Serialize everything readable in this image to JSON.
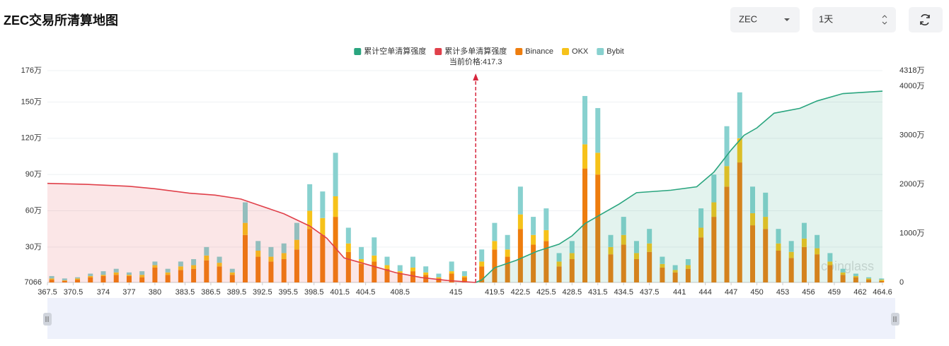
{
  "header": {
    "title": "ZEC交易所清算地图",
    "symbol": "ZEC",
    "interval": "1天"
  },
  "chart_data": {
    "type": "bar",
    "annotation": {
      "label": "当前价格:417.3",
      "value": 417.3
    },
    "watermark": "coinglass",
    "x": [
      368,
      369.5,
      371,
      372.5,
      374,
      375.5,
      377,
      378.5,
      380,
      381.5,
      383,
      384.5,
      386,
      387.5,
      389,
      390.5,
      392,
      393.5,
      395,
      396.5,
      398,
      399.5,
      401,
      402.5,
      404,
      405.5,
      407,
      408.5,
      410,
      411.5,
      413,
      414.5,
      416,
      418,
      419.5,
      421,
      422.5,
      424,
      425.5,
      427,
      428.5,
      430,
      431.5,
      433,
      434.5,
      436,
      437.5,
      439,
      440.5,
      442,
      443.5,
      445,
      446.5,
      448,
      449.5,
      451,
      452.5,
      454,
      455.5,
      457,
      458.5,
      460,
      461.5,
      463,
      464.5
    ],
    "series": [
      {
        "name": "累计空单清算强度",
        "color": "#2aa57f",
        "type": "line",
        "axis": "y2",
        "x": [
          417.3,
          418,
          419.5,
          422,
          424.5,
          427,
          428.5,
          430,
          432,
          434,
          436,
          440,
          443,
          445,
          447,
          448.5,
          450,
          452,
          455,
          457,
          460,
          464.6
        ],
        "values": [
          0,
          50,
          300,
          450,
          640,
          780,
          950,
          1200,
          1400,
          1600,
          1830,
          1880,
          1950,
          2250,
          2700,
          3000,
          3150,
          3450,
          3550,
          3700,
          3850,
          3900
        ]
      },
      {
        "name": "累计多单清算强度",
        "color": "#e0404a",
        "type": "line",
        "axis": "y2",
        "x": [
          367.5,
          372,
          377,
          380,
          384,
          387,
          390,
          392,
          395,
          398,
          400,
          402,
          405,
          408,
          411,
          414,
          417.3
        ],
        "values": [
          2020,
          2000,
          1960,
          1910,
          1820,
          1780,
          1700,
          1580,
          1400,
          1150,
          900,
          500,
          350,
          200,
          100,
          40,
          0
        ]
      },
      {
        "name": "Binance",
        "color": "#ee7d0e",
        "values": [
          3,
          2,
          3,
          5,
          6,
          7,
          6,
          5,
          13,
          7,
          11,
          12,
          19,
          14,
          7,
          40,
          22,
          18,
          20,
          28,
          45,
          40,
          55,
          26,
          16,
          18,
          12,
          8,
          10,
          7,
          4,
          8,
          5,
          14,
          28,
          22,
          45,
          32,
          35,
          14,
          20,
          95,
          90,
          24,
          32,
          20,
          26,
          13,
          9,
          12,
          38,
          55,
          80,
          100,
          48,
          45,
          27,
          21,
          30,
          24,
          15,
          7,
          5,
          3,
          2
        ]
      },
      {
        "name": "OKX",
        "color": "#f6c21a",
        "values": [
          1,
          0.5,
          1,
          1,
          1,
          2,
          1,
          2,
          2,
          2,
          3,
          3,
          4,
          3,
          2,
          10,
          5,
          4,
          5,
          8,
          15,
          14,
          17,
          7,
          4,
          5,
          3,
          2,
          3,
          2,
          1,
          2,
          1,
          4,
          7,
          6,
          12,
          8,
          9,
          4,
          5,
          20,
          18,
          6,
          8,
          5,
          7,
          3,
          2,
          3,
          8,
          12,
          17,
          20,
          10,
          10,
          6,
          5,
          7,
          5,
          3,
          2,
          1,
          1,
          1
        ]
      },
      {
        "name": "Bybit",
        "color": "#88d1cf",
        "values": [
          2,
          1.5,
          1,
          2,
          3,
          3,
          2,
          3,
          3,
          3,
          4,
          5,
          7,
          5,
          3,
          17,
          8,
          8,
          8,
          14,
          22,
          22,
          36,
          13,
          10,
          15,
          7,
          5,
          9,
          5,
          3,
          8,
          4,
          10,
          15,
          12,
          23,
          15,
          18,
          7,
          10,
          40,
          37,
          10,
          15,
          10,
          12,
          6,
          4,
          5,
          16,
          23,
          33,
          38,
          22,
          20,
          12,
          9,
          13,
          11,
          7,
          3,
          2,
          1,
          1
        ]
      }
    ],
    "xlim": [
      367.5,
      464.6
    ],
    "xticks": [
      367.5,
      370.5,
      374,
      377,
      380,
      383.5,
      386.5,
      389.5,
      392.5,
      395.5,
      398.5,
      401.5,
      404.5,
      408.5,
      415,
      419.5,
      422.5,
      425.5,
      428.5,
      431.5,
      434.5,
      437.5,
      441,
      444,
      447,
      450,
      453,
      456,
      459,
      462,
      464.6
    ],
    "ylim": [
      0.7066,
      176
    ],
    "yticks": [
      {
        "value": 0.7066,
        "label": "7066"
      },
      {
        "value": 30,
        "label": "30万"
      },
      {
        "value": 60,
        "label": "60万"
      },
      {
        "value": 90,
        "label": "90万"
      },
      {
        "value": 120,
        "label": "120万"
      },
      {
        "value": 150,
        "label": "150万"
      },
      {
        "value": 176,
        "label": "176万"
      }
    ],
    "y2lim": [
      0,
      4318
    ],
    "y2ticks": [
      0,
      {
        "value": 1000,
        "label": "1000万"
      },
      {
        "value": 2000,
        "label": "2000万"
      },
      {
        "value": 3000,
        "label": "3000万"
      },
      {
        "value": 4000,
        "label": "4000万"
      },
      {
        "value": 4318,
        "label": "4318万"
      }
    ],
    "grid": true
  }
}
